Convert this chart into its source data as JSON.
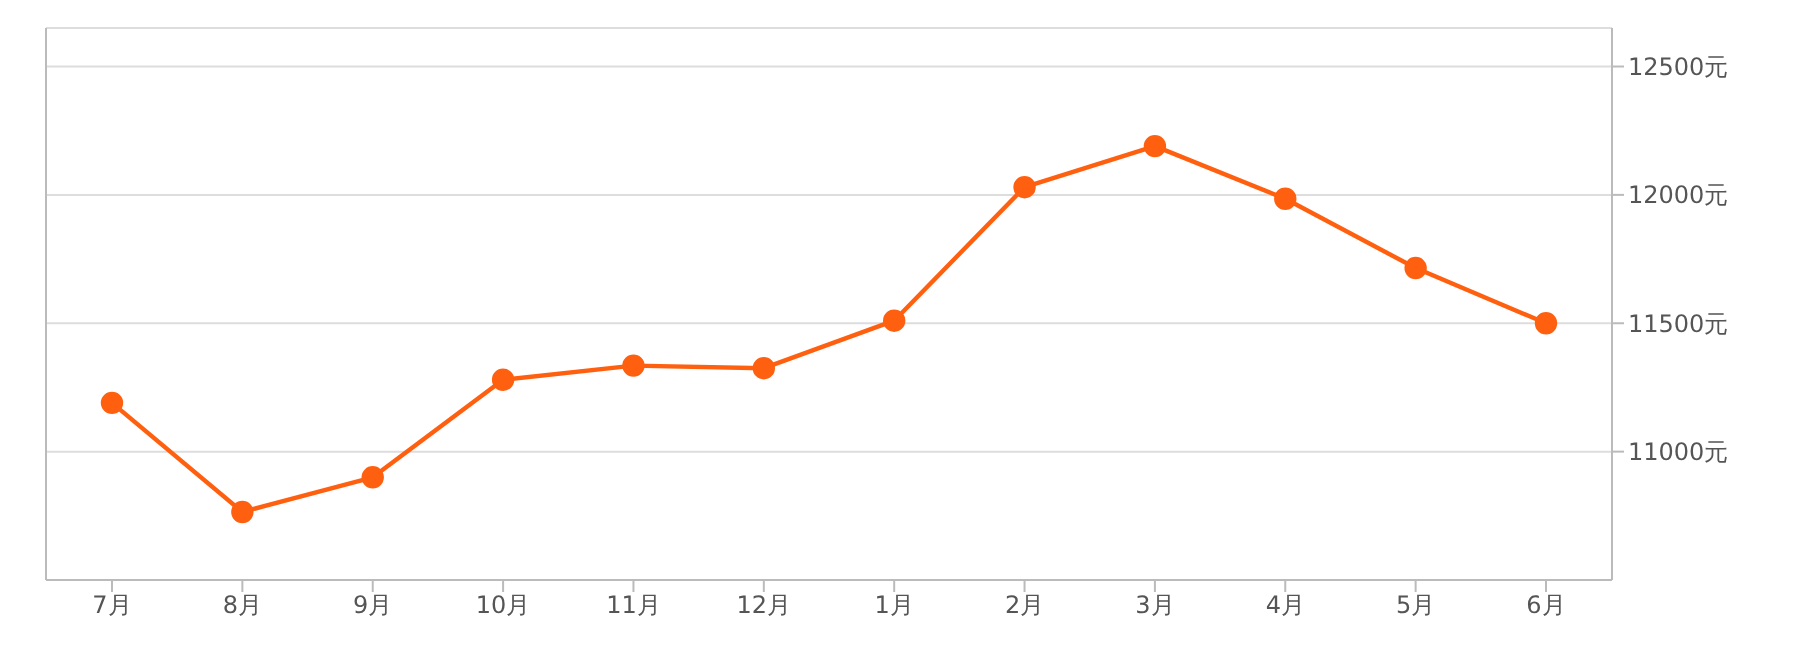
{
  "chart_data": {
    "type": "line",
    "categories": [
      "7月",
      "8月",
      "9月",
      "10月",
      "11月",
      "12月",
      "1月",
      "2月",
      "3月",
      "4月",
      "5月",
      "6月"
    ],
    "series": [
      {
        "color": "#ff6010",
        "values": [
          11190,
          10765,
          10900,
          11280,
          11335,
          11325,
          11510,
          12030,
          12190,
          11985,
          11715,
          11500
        ]
      }
    ],
    "ylim": [
      10500,
      12650
    ],
    "yticks": [
      {
        "value": 11000,
        "label": "11000元"
      },
      {
        "value": 11500,
        "label": "11500元"
      },
      {
        "value": 12000,
        "label": "12000元"
      },
      {
        "value": 12500,
        "label": "12500元"
      }
    ],
    "grid": "y",
    "legend": false,
    "marker": "circle",
    "line_style": "solid"
  }
}
